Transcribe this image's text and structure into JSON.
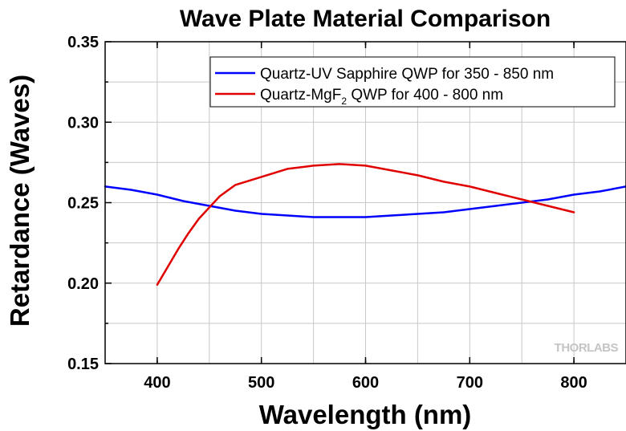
{
  "chart_data": {
    "type": "line",
    "title": "Wave Plate Material Comparison",
    "xlabel": "Wavelength (nm)",
    "ylabel": "Retardance (Waves)",
    "xlim": [
      350,
      850
    ],
    "ylim": [
      0.15,
      0.35
    ],
    "x_ticks": [
      400,
      500,
      600,
      700,
      800
    ],
    "x_tick_labels": [
      "400",
      "500",
      "600",
      "700",
      "800"
    ],
    "y_ticks": [
      0.15,
      0.2,
      0.25,
      0.3,
      0.35
    ],
    "y_tick_labels": [
      "0.15",
      "0.20",
      "0.25",
      "0.30",
      "0.35"
    ],
    "grid": true,
    "legend_position": "top-right",
    "watermark": "THORLABS",
    "series": [
      {
        "name": "Quartz-UV Sapphire QWP for 350 - 850 nm",
        "color": "#0000ff",
        "x": [
          350,
          375,
          400,
          425,
          450,
          475,
          500,
          525,
          550,
          575,
          600,
          625,
          650,
          675,
          700,
          725,
          750,
          775,
          800,
          825,
          850
        ],
        "y": [
          0.26,
          0.258,
          0.255,
          0.251,
          0.248,
          0.245,
          0.243,
          0.242,
          0.241,
          0.241,
          0.241,
          0.242,
          0.243,
          0.244,
          0.246,
          0.248,
          0.25,
          0.252,
          0.255,
          0.257,
          0.26
        ]
      },
      {
        "name": "Quartz-MgF₂ QWP for 400 - 800 nm",
        "name_parts": [
          "Quartz-MgF",
          "2",
          " QWP for 400 - 800 nm"
        ],
        "color": "#e00000",
        "x": [
          400,
          410,
          420,
          430,
          440,
          450,
          460,
          475,
          500,
          525,
          550,
          575,
          600,
          625,
          650,
          675,
          700,
          725,
          750,
          775,
          800
        ],
        "y": [
          0.199,
          0.21,
          0.221,
          0.231,
          0.24,
          0.247,
          0.254,
          0.261,
          0.266,
          0.271,
          0.273,
          0.274,
          0.273,
          0.27,
          0.267,
          0.263,
          0.26,
          0.256,
          0.252,
          0.248,
          0.244
        ]
      }
    ]
  }
}
